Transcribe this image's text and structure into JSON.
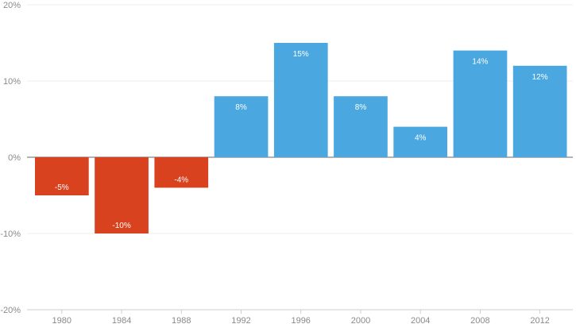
{
  "chart_data": {
    "type": "bar",
    "title": "",
    "xlabel": "",
    "ylabel": "",
    "categories": [
      "1980",
      "1984",
      "1988",
      "1992",
      "1996",
      "2000",
      "2004",
      "2008",
      "2012"
    ],
    "values": [
      -5,
      -10,
      -4,
      8,
      15,
      8,
      4,
      14,
      12
    ],
    "data_labels": [
      "-5%",
      "-10%",
      "-4%",
      "8%",
      "15%",
      "8%",
      "4%",
      "14%",
      "12%"
    ],
    "ylim": [
      -20,
      20
    ],
    "yticks": [
      -20,
      -10,
      0,
      10,
      20
    ],
    "ytick_labels": [
      "-20%",
      "-10%",
      "0%",
      "10%",
      "20%"
    ],
    "grid": true,
    "colors": {
      "negative": "#d9421f",
      "positive": "#4aa7e0"
    }
  }
}
